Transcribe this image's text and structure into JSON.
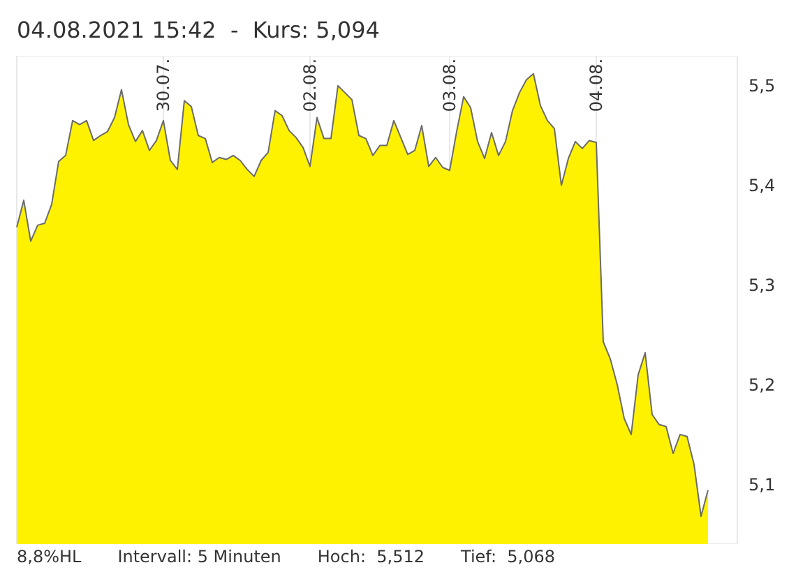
{
  "chart_data": {
    "type": "area",
    "title": "04.08.2021 15:42  -  Kurs: 5,094",
    "annotations": [
      "8,8%HL",
      "Intervall: 5 Minuten",
      "Hoch:  5,512",
      "Tief:  5,068"
    ],
    "categories": [
      null,
      null,
      null,
      null,
      null,
      null,
      null,
      null,
      null,
      null,
      null,
      null,
      null,
      null,
      null,
      null,
      null,
      null,
      null,
      null,
      null,
      "30.07.",
      null,
      null,
      null,
      null,
      null,
      null,
      null,
      null,
      null,
      null,
      null,
      null,
      null,
      null,
      null,
      null,
      null,
      null,
      null,
      null,
      "02.08.",
      null,
      null,
      null,
      null,
      null,
      null,
      null,
      null,
      null,
      null,
      null,
      null,
      null,
      null,
      null,
      null,
      null,
      null,
      null,
      "03.08.",
      null,
      null,
      null,
      null,
      null,
      null,
      null,
      null,
      null,
      null,
      null,
      null,
      null,
      null,
      null,
      null,
      null,
      null,
      null,
      null,
      "04.08.",
      null,
      null,
      null,
      null,
      null,
      null,
      null,
      null,
      null,
      null,
      null,
      null,
      null,
      null,
      null,
      null
    ],
    "series": [
      {
        "color": "#fff200",
        "values": [
          5.358,
          5.385,
          5.344,
          5.36,
          5.362,
          5.381,
          5.424,
          5.43,
          5.465,
          5.461,
          5.465,
          5.445,
          5.45,
          5.454,
          5.468,
          5.496,
          5.461,
          5.444,
          5.455,
          5.435,
          5.445,
          5.465,
          5.425,
          5.416,
          5.485,
          5.479,
          5.45,
          5.447,
          5.423,
          5.428,
          5.426,
          5.43,
          5.425,
          5.416,
          5.409,
          5.425,
          5.433,
          5.475,
          5.47,
          5.455,
          5.448,
          5.438,
          5.419,
          5.468,
          5.447,
          5.447,
          5.5,
          5.493,
          5.486,
          5.45,
          5.447,
          5.43,
          5.44,
          5.44,
          5.465,
          5.448,
          5.431,
          5.435,
          5.46,
          5.419,
          5.428,
          5.418,
          5.415,
          5.454,
          5.489,
          5.478,
          5.444,
          5.427,
          5.453,
          5.43,
          5.444,
          5.475,
          5.493,
          5.506,
          5.512,
          5.48,
          5.465,
          5.457,
          5.4,
          5.427,
          5.444,
          5.437,
          5.445,
          5.443,
          5.243,
          5.226,
          5.2,
          5.166,
          5.15,
          5.21,
          5.232,
          5.17,
          5.16,
          5.158,
          5.131,
          5.15,
          5.148,
          5.12,
          5.068,
          5.094
        ]
      }
    ],
    "ylim": [
      5.04,
      5.53
    ],
    "yticks": [
      {
        "value": 5.1,
        "label": "5,1"
      },
      {
        "value": 5.2,
        "label": "5,2"
      },
      {
        "value": 5.3,
        "label": "5,3"
      },
      {
        "value": 5.4,
        "label": "5,4"
      },
      {
        "value": 5.5,
        "label": "5,5"
      }
    ],
    "grid": true
  }
}
